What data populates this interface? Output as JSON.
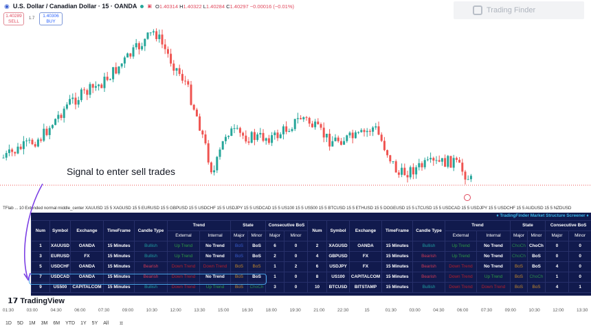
{
  "header": {
    "title": "U.S. Dollar / Canadian Dollar · 15 · OANDA",
    "open": "1.40314",
    "high": "1.40322",
    "low": "1.40284",
    "close": "1.40297",
    "change": "−0.00016 (−0.01%)",
    "sell_price": "1.40289",
    "sell_label": "SELL",
    "spread": "1.7",
    "buy_price": "1.40306",
    "buy_label": "BUY"
  },
  "logo": {
    "text": "Trading Finder"
  },
  "annotation": {
    "signal": "Signal to enter sell trades"
  },
  "indicator_line": "TFlab ... 10 Extended normal middle_center XAUUSD 15 5 XAGUSD 15 5 EURUSD 15 5 GBPUSD 15 5 USDCHF 15 5 USDJPY 15 5 USDCAD 15 5 US100 15 5 US500 15 5 BTCUSD 15 5 ETHUSD 15 5 DOGEUSD 15 5 LTCUSD 15 5 USDCAD 15 5 USDJPY 15 5 USDCHF 15 5 AUDUSD 15 5 NZDUSD",
  "screener": {
    "title": "♦ TradingFinder Market Structure Screener ♦",
    "headers": {
      "num": "Num",
      "symbol": "Symbol",
      "exchange": "Exchange",
      "timeframe": "TimeFrame",
      "candle": "Candle Type",
      "trend": "Trend",
      "external": "External",
      "internal": "Internal",
      "state": "State",
      "major": "Major",
      "minor": "Minor",
      "consec": "Consecutive BoS"
    },
    "rows": [
      [
        [
          "1",
          "white"
        ],
        [
          "XAUUSD",
          "white"
        ],
        [
          "OANDA",
          "white"
        ],
        [
          "15 Minutes",
          "white"
        ],
        [
          "Bullish",
          "bull"
        ],
        [
          "Up Trend",
          "up"
        ],
        [
          "No Trend",
          "white"
        ],
        [
          "BoS",
          "blue"
        ],
        [
          "BoS",
          "white"
        ],
        [
          "6",
          "white"
        ],
        [
          "0",
          "white"
        ],
        [
          "2",
          "white"
        ],
        [
          "XAGUSD",
          "white"
        ],
        [
          "OANDA",
          "white"
        ],
        [
          "15 Minutes",
          "white"
        ],
        [
          "Bullish",
          "bull"
        ],
        [
          "Up Trend",
          "up"
        ],
        [
          "No Trend",
          "white"
        ],
        [
          "ChoCh",
          "green"
        ],
        [
          "ChoCh",
          "white"
        ],
        [
          "0",
          "white"
        ],
        [
          "0",
          "white"
        ]
      ],
      [
        [
          "3",
          "white"
        ],
        [
          "EURUSD",
          "white"
        ],
        [
          "FX",
          "white"
        ],
        [
          "15 Minutes",
          "white"
        ],
        [
          "Bullish",
          "bull"
        ],
        [
          "Up Trend",
          "up"
        ],
        [
          "No Trend",
          "white"
        ],
        [
          "BoS",
          "blue"
        ],
        [
          "BoS",
          "white"
        ],
        [
          "2",
          "white"
        ],
        [
          "0",
          "white"
        ],
        [
          "4",
          "white"
        ],
        [
          "GBPUSD",
          "white"
        ],
        [
          "FX",
          "white"
        ],
        [
          "15 Minutes",
          "white"
        ],
        [
          "Bearish",
          "bear"
        ],
        [
          "Up Trend",
          "up"
        ],
        [
          "No Trend",
          "white"
        ],
        [
          "ChoCh",
          "green"
        ],
        [
          "BoS",
          "white"
        ],
        [
          "0",
          "white"
        ],
        [
          "0",
          "white"
        ]
      ],
      [
        [
          "5",
          "white"
        ],
        [
          "USDCHF",
          "white"
        ],
        [
          "OANDA",
          "white"
        ],
        [
          "15 Minutes",
          "white"
        ],
        [
          "Bearish",
          "bear"
        ],
        [
          "Down Trend",
          "down"
        ],
        [
          "Down Trend",
          "down"
        ],
        [
          "BoS",
          "orange"
        ],
        [
          "BoS",
          "orange"
        ],
        [
          "1",
          "white"
        ],
        [
          "2",
          "white"
        ],
        [
          "6",
          "white"
        ],
        [
          "USDJPY",
          "white"
        ],
        [
          "FX",
          "white"
        ],
        [
          "15 Minutes",
          "white"
        ],
        [
          "Bearish",
          "bear"
        ],
        [
          "Down Trend",
          "down"
        ],
        [
          "No Trend",
          "white"
        ],
        [
          "BoS",
          "orange"
        ],
        [
          "BoS",
          "white"
        ],
        [
          "4",
          "white"
        ],
        [
          "0",
          "white"
        ]
      ],
      [
        [
          "7",
          "white"
        ],
        [
          "USDCAD",
          "white"
        ],
        [
          "OANDA",
          "white"
        ],
        [
          "15 Minutes",
          "white"
        ],
        [
          "Bearish",
          "bear"
        ],
        [
          "Down Trend",
          "down"
        ],
        [
          "No Trend",
          "white"
        ],
        [
          "BoS",
          "orange"
        ],
        [
          "BoS",
          "white"
        ],
        [
          "1",
          "white"
        ],
        [
          "0",
          "white"
        ],
        [
          "8",
          "white"
        ],
        [
          "US100",
          "white"
        ],
        [
          "CAPITALCOM",
          "white"
        ],
        [
          "15 Minutes",
          "white"
        ],
        [
          "Bearish",
          "bear"
        ],
        [
          "Down Trend",
          "down"
        ],
        [
          "Up Trend",
          "up"
        ],
        [
          "BoS",
          "orange"
        ],
        [
          "ChoCh",
          "green"
        ],
        [
          "1",
          "white"
        ],
        [
          "0",
          "white"
        ]
      ],
      [
        [
          "9",
          "white"
        ],
        [
          "US500",
          "white"
        ],
        [
          "CAPITALCOM",
          "white"
        ],
        [
          "15 Minutes",
          "white"
        ],
        [
          "Bullish",
          "bull"
        ],
        [
          "Down Trend",
          "down"
        ],
        [
          "Up Trend",
          "up"
        ],
        [
          "BoS",
          "orange"
        ],
        [
          "ChoCh",
          "green"
        ],
        [
          "3",
          "white"
        ],
        [
          "0",
          "white"
        ],
        [
          "10",
          "white"
        ],
        [
          "BTCUSD",
          "white"
        ],
        [
          "BITSTAMP",
          "white"
        ],
        [
          "15 Minutes",
          "white"
        ],
        [
          "Bullish",
          "bull"
        ],
        [
          "Down Trend",
          "down"
        ],
        [
          "Down Trend",
          "down"
        ],
        [
          "BoS",
          "orange"
        ],
        [
          "BoS",
          "orange"
        ],
        [
          "4",
          "white"
        ],
        [
          "1",
          "white"
        ]
      ]
    ],
    "highlighted_row": "USDCAD"
  },
  "tv_logo": "TradingView",
  "time_axis": [
    "01:30",
    "03:00",
    "04:30",
    "06:00",
    "07:30",
    "09:00",
    "10:30",
    "12:00",
    "13:30",
    "15:00",
    "16:30",
    "18:00",
    "19:30",
    "21:00",
    "22:30",
    "15",
    "01:30",
    "03:00",
    "04:30",
    "06:00",
    "07:30",
    "09:00",
    "10:30",
    "12:00",
    "13:30"
  ],
  "ranges": [
    "1D",
    "5D",
    "1M",
    "3M",
    "6M",
    "YTD",
    "1Y",
    "5Y",
    "All"
  ],
  "colors": {
    "up": "#26a69a",
    "down": "#ef5350",
    "table_bg": "#111a4d",
    "highlight": "#4aa3e8",
    "arrow": "#7b3fe4"
  }
}
